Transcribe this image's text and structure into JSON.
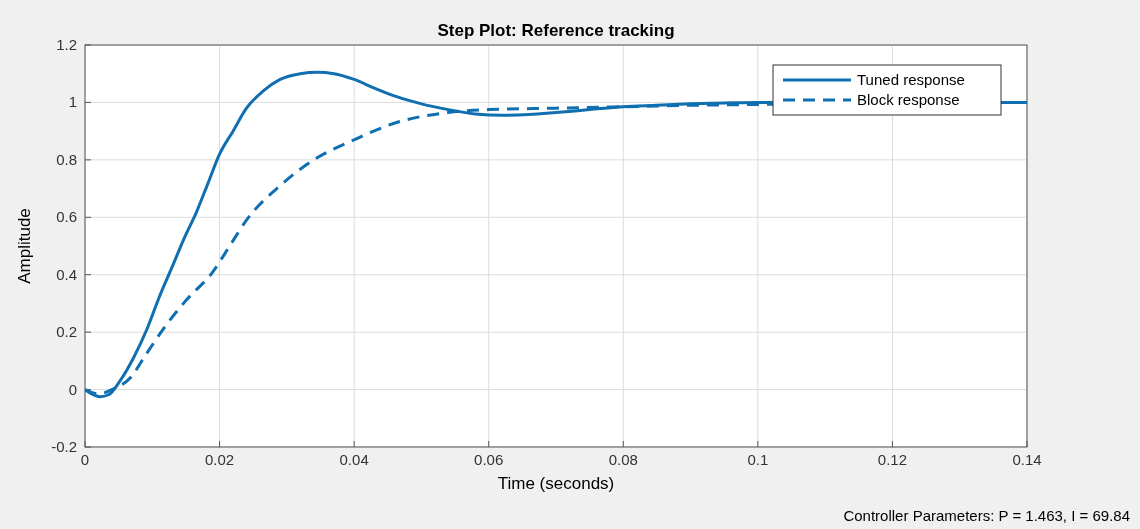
{
  "chart_data": {
    "type": "line",
    "title": "Step Plot: Reference tracking",
    "xlabel": "Time (seconds)",
    "ylabel": "Amplitude",
    "annotations": [
      "Controller Parameters: P = 1.463, I = 69.84"
    ],
    "xlim": [
      0,
      0.14
    ],
    "xticks": [
      0,
      0.02,
      0.04,
      0.06,
      0.08,
      0.1,
      0.12,
      0.14
    ],
    "ylim": [
      -0.2,
      1.2
    ],
    "yticks": [
      -0.2,
      0,
      0.2,
      0.4,
      0.6,
      0.8,
      1,
      1.2
    ],
    "grid": true,
    "legend": "top right",
    "marker": "none",
    "series": [
      {
        "name": "Tuned response",
        "color": "#0f6fb0",
        "line_style": "solid",
        "x": [
          0,
          0.001,
          0.0022,
          0.0035,
          0.0052,
          0.0072,
          0.0092,
          0.011,
          0.013,
          0.0148,
          0.0166,
          0.0183,
          0.02,
          0.022,
          0.024,
          0.0265,
          0.029,
          0.032,
          0.0345,
          0.037,
          0.04,
          0.043,
          0.0463,
          0.05,
          0.054,
          0.058,
          0.062,
          0.066,
          0.07,
          0.075,
          0.08,
          0.085,
          0.09,
          0.095,
          0.1,
          0.14
        ],
        "values": [
          0,
          -0.015,
          -0.025,
          -0.018,
          0.03,
          0.11,
          0.21,
          0.32,
          0.43,
          0.53,
          0.62,
          0.72,
          0.82,
          0.9,
          0.98,
          1.04,
          1.08,
          1.1,
          1.105,
          1.1,
          1.08,
          1.05,
          1.02,
          0.995,
          0.975,
          0.96,
          0.955,
          0.958,
          0.965,
          0.975,
          0.985,
          0.99,
          0.995,
          0.998,
          1,
          1
        ]
      },
      {
        "name": "Block response",
        "color": "#0f6fb0",
        "line_style": "dashed",
        "x": [
          0,
          0.002,
          0.004,
          0.0067,
          0.009,
          0.0116,
          0.015,
          0.019,
          0.0215,
          0.024,
          0.029,
          0.034,
          0.04,
          0.0463,
          0.054,
          0.06,
          0.07,
          0.08,
          0.09,
          0.1,
          0.14
        ],
        "values": [
          0,
          -0.015,
          0,
          0.04,
          0.12,
          0.21,
          0.31,
          0.41,
          0.5,
          0.59,
          0.71,
          0.8,
          0.87,
          0.93,
          0.965,
          0.975,
          0.98,
          0.985,
          0.99,
          0.993,
          1
        ]
      }
    ]
  }
}
